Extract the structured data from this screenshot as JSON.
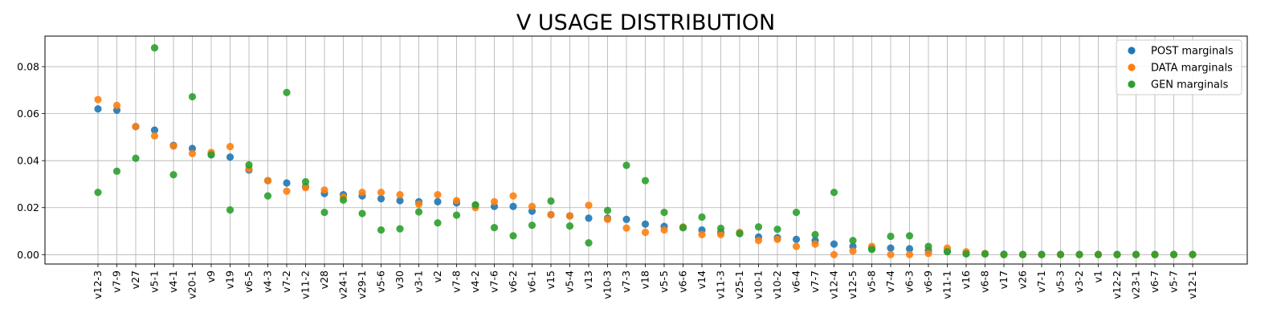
{
  "chart_data": {
    "type": "scatter",
    "title": "V USAGE DISTRIBUTION",
    "xlabel": "",
    "ylabel": "",
    "ylim": [
      -0.004,
      0.093
    ],
    "yticks": [
      "0.00",
      "0.02",
      "0.04",
      "0.06",
      "0.08"
    ],
    "grid": true,
    "legend_position": "top-right",
    "categories": [
      "v12-3",
      "v7-9",
      "v27",
      "v5-1",
      "v4-1",
      "v20-1",
      "v9",
      "v19",
      "v6-5",
      "v4-3",
      "v7-2",
      "v11-2",
      "v28",
      "v24-1",
      "v29-1",
      "v5-6",
      "v30",
      "v3-1",
      "v2",
      "v7-8",
      "v4-2",
      "v7-6",
      "v6-2",
      "v6-1",
      "v15",
      "v5-4",
      "v13",
      "v10-3",
      "v7-3",
      "v18",
      "v5-5",
      "v6-6",
      "v14",
      "v11-3",
      "v25-1",
      "v10-1",
      "v10-2",
      "v6-4",
      "v7-7",
      "v12-4",
      "v12-5",
      "v5-8",
      "v7-4",
      "v6-3",
      "v6-9",
      "v11-1",
      "v16",
      "v6-8",
      "v17",
      "v26",
      "v7-1",
      "v5-3",
      "v3-2",
      "v1",
      "v12-2",
      "v23-1",
      "v6-7",
      "v5-7",
      "v12-1"
    ],
    "series": [
      {
        "name": "POST marginals",
        "color": "#1f77b4",
        "values": [
          0.062,
          0.0615,
          0.0545,
          0.053,
          0.0465,
          0.0452,
          0.0425,
          0.0415,
          0.036,
          0.0315,
          0.0305,
          0.029,
          0.026,
          0.0255,
          0.025,
          0.0238,
          0.023,
          0.0225,
          0.0225,
          0.022,
          0.021,
          0.0205,
          0.0205,
          0.0185,
          0.017,
          0.0165,
          0.0155,
          0.0155,
          0.015,
          0.013,
          0.012,
          0.0115,
          0.0105,
          0.0095,
          0.009,
          0.0075,
          0.0072,
          0.0065,
          0.006,
          0.0045,
          0.0035,
          0.0028,
          0.0028,
          0.0025,
          0.0018,
          0.0015,
          0.0005,
          0.0003,
          0.0002,
          0.0001,
          0.0001,
          0.0001,
          0.0001,
          0.0001,
          0.0001,
          0.0001,
          0.0001,
          0.0001,
          0.0001
        ]
      },
      {
        "name": "DATA marginals",
        "color": "#ff7f0e",
        "values": [
          0.066,
          0.0635,
          0.0545,
          0.0505,
          0.0462,
          0.043,
          0.0435,
          0.046,
          0.0365,
          0.0315,
          0.027,
          0.0285,
          0.0275,
          0.0245,
          0.0265,
          0.0265,
          0.0255,
          0.0215,
          0.0255,
          0.023,
          0.02,
          0.0225,
          0.025,
          0.0205,
          0.017,
          0.0165,
          0.021,
          0.015,
          0.0113,
          0.0095,
          0.0105,
          0.0118,
          0.0085,
          0.0085,
          0.0095,
          0.006,
          0.0065,
          0.0035,
          0.0045,
          0.0,
          0.0015,
          0.0035,
          0.0,
          0.0,
          0.0005,
          0.0028,
          0.0012,
          0.0005,
          0.0,
          0.0,
          0.0,
          0.0,
          0.0,
          0.0,
          0.0,
          0.0,
          0.0,
          0.0,
          0.0
        ]
      },
      {
        "name": "GEN marginals",
        "color": "#2ca02c",
        "values": [
          0.0265,
          0.0355,
          0.041,
          0.088,
          0.034,
          0.0672,
          0.0425,
          0.019,
          0.0382,
          0.025,
          0.069,
          0.031,
          0.018,
          0.0232,
          0.0175,
          0.0105,
          0.011,
          0.0182,
          0.0135,
          0.0168,
          0.0212,
          0.0115,
          0.008,
          0.0125,
          0.0228,
          0.0122,
          0.005,
          0.0188,
          0.038,
          0.0315,
          0.018,
          0.0115,
          0.016,
          0.0112,
          0.009,
          0.0118,
          0.0108,
          0.018,
          0.0085,
          0.0265,
          0.006,
          0.0022,
          0.0078,
          0.008,
          0.0035,
          0.0012,
          0.0003,
          0.0003,
          0.0,
          0.0,
          0.0,
          0.0,
          0.0,
          0.0,
          0.0,
          0.0,
          0.0,
          0.0,
          0.0
        ]
      }
    ]
  }
}
